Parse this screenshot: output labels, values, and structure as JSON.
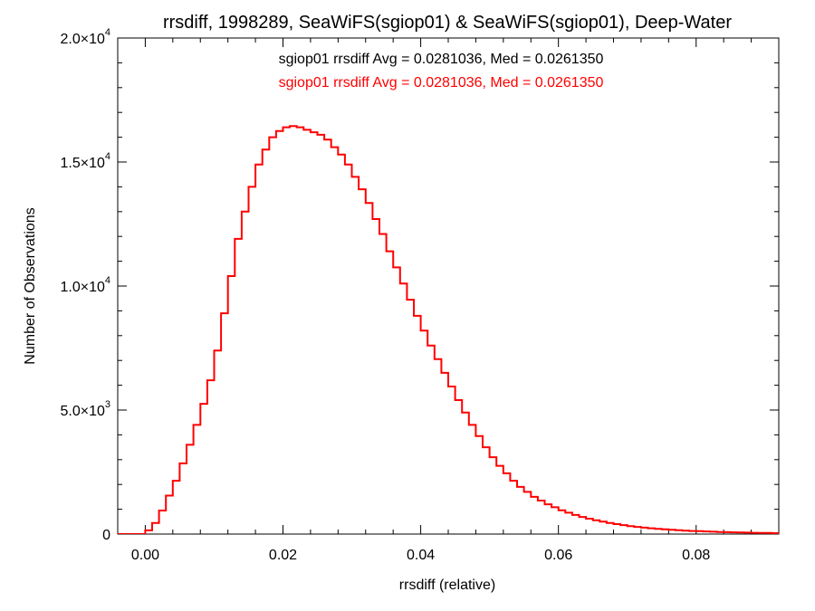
{
  "chart_data": {
    "type": "line",
    "title": "rrsdiff, 1998289, SeaWiFS(sgiop01) & SeaWiFS(sgiop01), Deep-Water",
    "xlabel": "rrsdiff (relative)",
    "ylabel": "Number of Observations",
    "xlim": [
      -0.004,
      0.092
    ],
    "ylim": [
      0,
      20000
    ],
    "x_ticks": [
      {
        "value": 0.0,
        "label": "0.00"
      },
      {
        "value": 0.02,
        "label": "0.02"
      },
      {
        "value": 0.04,
        "label": "0.04"
      },
      {
        "value": 0.06,
        "label": "0.06"
      },
      {
        "value": 0.08,
        "label": "0.08"
      }
    ],
    "y_ticks": [
      {
        "value": 0,
        "mantissa": "0",
        "exponent": ""
      },
      {
        "value": 5000,
        "mantissa": "5.0×10",
        "exponent": "3"
      },
      {
        "value": 10000,
        "mantissa": "1.0×10",
        "exponent": "4"
      },
      {
        "value": 15000,
        "mantissa": "1.5×10",
        "exponent": "4"
      },
      {
        "value": 20000,
        "mantissa": "2.0×10",
        "exponent": "4"
      }
    ],
    "x_minor_step": 0.004,
    "y_minor_step": 1000,
    "legend_position": "top-center",
    "annotations": [
      {
        "text": "sgiop01 rrsdiff Avg = 0.0281036, Med = 0.0261350",
        "color": "#000000"
      },
      {
        "text": "sgiop01 rrsdiff Avg = 0.0281036, Med = 0.0261350",
        "color": "#ff0000"
      }
    ],
    "series": [
      {
        "color": "#ff0000",
        "style": "step",
        "points": [
          [
            -0.004,
            0
          ],
          [
            -0.0005,
            0
          ],
          [
            0.0,
            150
          ],
          [
            0.001,
            450
          ],
          [
            0.002,
            950
          ],
          [
            0.003,
            1550
          ],
          [
            0.004,
            2150
          ],
          [
            0.005,
            2850
          ],
          [
            0.006,
            3600
          ],
          [
            0.007,
            4400
          ],
          [
            0.008,
            5250
          ],
          [
            0.009,
            6200
          ],
          [
            0.01,
            7400
          ],
          [
            0.011,
            8900
          ],
          [
            0.012,
            10400
          ],
          [
            0.013,
            11900
          ],
          [
            0.014,
            13000
          ],
          [
            0.015,
            14000
          ],
          [
            0.016,
            14900
          ],
          [
            0.017,
            15500
          ],
          [
            0.018,
            16000
          ],
          [
            0.019,
            16250
          ],
          [
            0.02,
            16400
          ],
          [
            0.021,
            16450
          ],
          [
            0.022,
            16400
          ],
          [
            0.023,
            16300
          ],
          [
            0.024,
            16200
          ],
          [
            0.025,
            16100
          ],
          [
            0.026,
            15900
          ],
          [
            0.027,
            15600
          ],
          [
            0.028,
            15300
          ],
          [
            0.029,
            14900
          ],
          [
            0.03,
            14400
          ],
          [
            0.031,
            13900
          ],
          [
            0.032,
            13350
          ],
          [
            0.033,
            12700
          ],
          [
            0.034,
            12100
          ],
          [
            0.035,
            11400
          ],
          [
            0.036,
            10750
          ],
          [
            0.037,
            10100
          ],
          [
            0.038,
            9450
          ],
          [
            0.039,
            8800
          ],
          [
            0.04,
            8200
          ],
          [
            0.041,
            7600
          ],
          [
            0.042,
            7050
          ],
          [
            0.043,
            6500
          ],
          [
            0.044,
            5950
          ],
          [
            0.045,
            5400
          ],
          [
            0.046,
            4900
          ],
          [
            0.047,
            4400
          ],
          [
            0.048,
            3950
          ],
          [
            0.049,
            3500
          ],
          [
            0.05,
            3100
          ],
          [
            0.051,
            2750
          ],
          [
            0.052,
            2450
          ],
          [
            0.053,
            2150
          ],
          [
            0.054,
            1900
          ],
          [
            0.055,
            1700
          ],
          [
            0.056,
            1500
          ],
          [
            0.057,
            1350
          ],
          [
            0.058,
            1200
          ],
          [
            0.059,
            1080
          ],
          [
            0.06,
            960
          ],
          [
            0.061,
            860
          ],
          [
            0.062,
            770
          ],
          [
            0.063,
            690
          ],
          [
            0.064,
            620
          ],
          [
            0.065,
            560
          ],
          [
            0.066,
            500
          ],
          [
            0.067,
            450
          ],
          [
            0.068,
            400
          ],
          [
            0.069,
            360
          ],
          [
            0.07,
            320
          ],
          [
            0.071,
            290
          ],
          [
            0.072,
            260
          ],
          [
            0.073,
            235
          ],
          [
            0.074,
            210
          ],
          [
            0.075,
            190
          ],
          [
            0.076,
            170
          ],
          [
            0.077,
            155
          ],
          [
            0.078,
            140
          ],
          [
            0.079,
            125
          ],
          [
            0.08,
            115
          ],
          [
            0.081,
            105
          ],
          [
            0.082,
            95
          ],
          [
            0.083,
            85
          ],
          [
            0.084,
            78
          ],
          [
            0.085,
            70
          ],
          [
            0.086,
            63
          ],
          [
            0.087,
            57
          ],
          [
            0.088,
            52
          ],
          [
            0.089,
            47
          ],
          [
            0.09,
            42
          ],
          [
            0.091,
            38
          ],
          [
            0.092,
            35
          ]
        ]
      }
    ]
  }
}
